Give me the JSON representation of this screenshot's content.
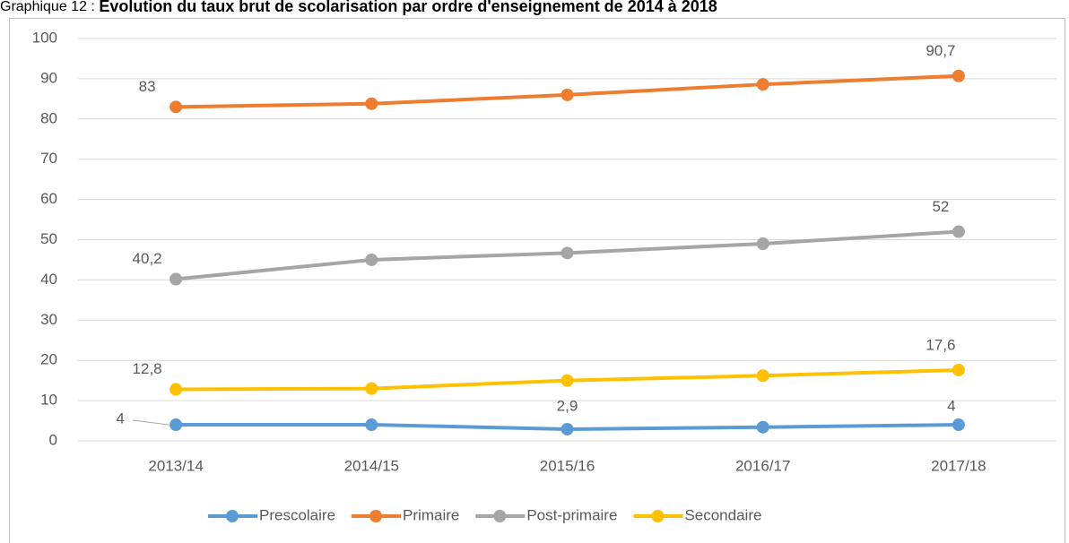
{
  "chart_data": {
    "type": "line",
    "title_prefix": "Graphique 12 :",
    "title": "Evolution du taux brut de scolarisation par ordre d'enseignement de 2014 à 2018",
    "categories": [
      "2013/14",
      "2014/15",
      "2015/16",
      "2016/17",
      "2017/18"
    ],
    "series": [
      {
        "name": "Prescolaire",
        "color": "#5b9bd5",
        "values": [
          4,
          4,
          2.9,
          3.4,
          4
        ],
        "value_labels": [
          "4",
          null,
          "2,9",
          null,
          "4"
        ]
      },
      {
        "name": "Primaire",
        "color": "#ed7d31",
        "values": [
          83,
          83.8,
          86,
          88.6,
          90.7
        ],
        "value_labels": [
          "83",
          null,
          null,
          null,
          "90,7"
        ]
      },
      {
        "name": "Post-primaire",
        "color": "#a5a5a5",
        "values": [
          40.2,
          45,
          46.7,
          49,
          52
        ],
        "value_labels": [
          "40,2",
          null,
          null,
          null,
          "52"
        ]
      },
      {
        "name": "Secondaire",
        "color": "#ffc000",
        "values": [
          12.8,
          13,
          15,
          16.2,
          17.6
        ],
        "value_labels": [
          "12,8",
          null,
          null,
          null,
          "17,6"
        ]
      }
    ],
    "ylim": [
      0,
      100
    ],
    "yticks": [
      0,
      10,
      20,
      30,
      40,
      50,
      60,
      70,
      80,
      90,
      100
    ],
    "grid": true,
    "legend": "bottom"
  }
}
